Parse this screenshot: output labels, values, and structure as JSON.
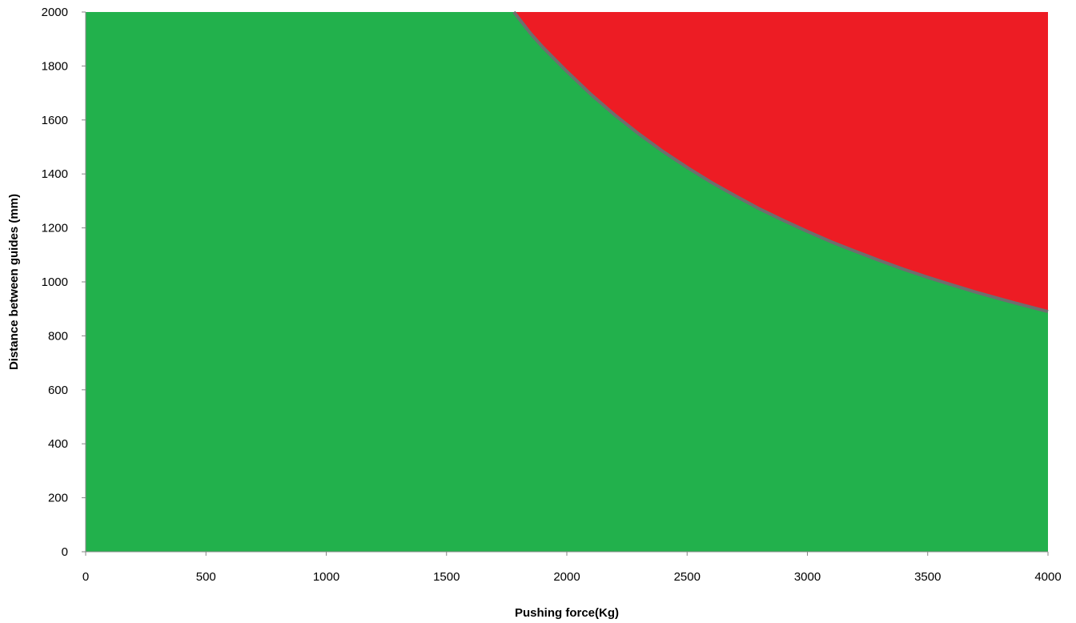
{
  "chart_data": {
    "type": "area",
    "title": "",
    "xlabel": "Pushing force(Kg)",
    "ylabel": "Distance between guides (mm)",
    "xlim": [
      0,
      4000
    ],
    "ylim": [
      0,
      2000
    ],
    "x_ticks": [
      "0",
      "500",
      "1000",
      "1500",
      "2000",
      "2500",
      "3000",
      "3500",
      "4000"
    ],
    "y_ticks": [
      "0",
      "200",
      "400",
      "600",
      "800",
      "1000",
      "1200",
      "1400",
      "1600",
      "1800",
      "2000"
    ],
    "grid": false,
    "legend": "none",
    "boundary_curve": {
      "x": [
        1780,
        1850,
        1900,
        2000,
        2100,
        2200,
        2300,
        2400,
        2500,
        2600,
        2700,
        2800,
        2900,
        3000,
        3100,
        3200,
        3300,
        3400,
        3500,
        3600,
        3700,
        3800,
        3900,
        4000
      ],
      "y": [
        2000,
        1920,
        1870,
        1780,
        1695,
        1618,
        1548,
        1483,
        1424,
        1369,
        1319,
        1271,
        1228,
        1187,
        1148,
        1113,
        1079,
        1047,
        1017,
        989,
        962,
        937,
        913,
        890
      ]
    },
    "colors": {
      "safe_region": "#22b14c",
      "unsafe_region": "#ed1c24",
      "boundary_line": "#6e6e6e",
      "axis": "#868686"
    }
  }
}
